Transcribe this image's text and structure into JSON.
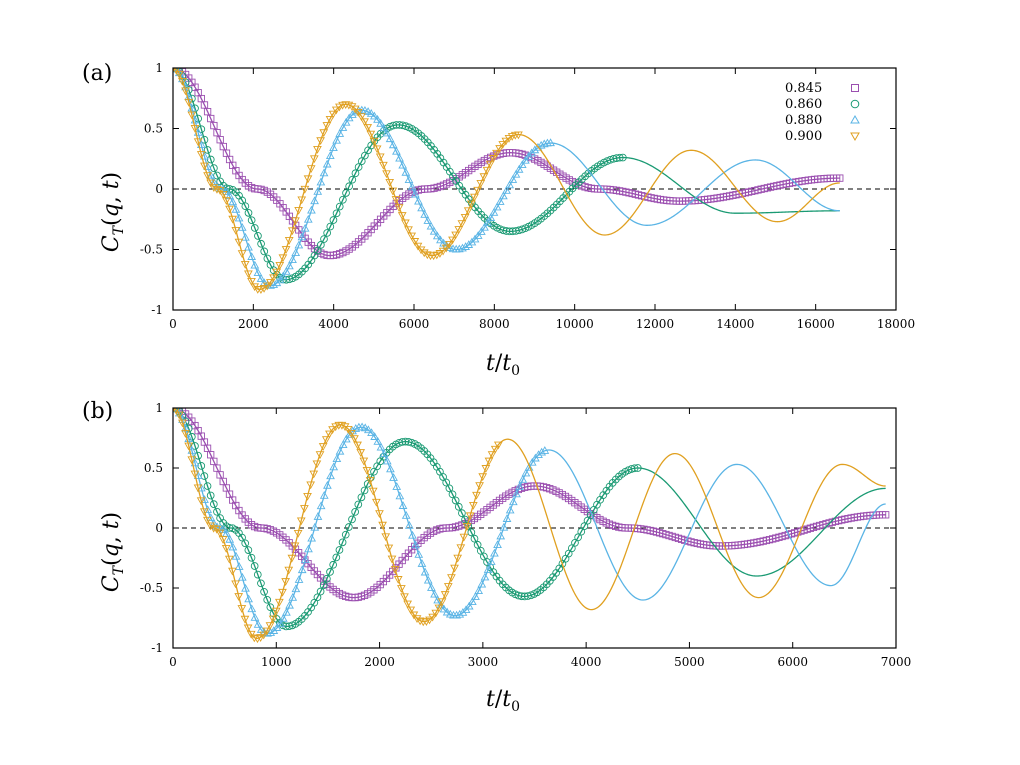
{
  "chart_data": [
    {
      "type": "line",
      "panel_label": "(a)",
      "xlabel": "t/t0",
      "ylabel": "C_T(q,t)",
      "xlim": [
        0,
        18000
      ],
      "ylim": [
        -1,
        1
      ],
      "xticks": [
        0,
        2000,
        4000,
        6000,
        8000,
        10000,
        12000,
        14000,
        16000,
        18000
      ],
      "yticks": [
        -1,
        -0.5,
        0,
        0.5,
        1
      ],
      "xtick_labels": [
        "0",
        "2000",
        "4000",
        "6000",
        "8000",
        "10000",
        "12000",
        "14000",
        "16000",
        "18000"
      ],
      "ytick_labels": [
        "-1",
        "-0.5",
        "0",
        "0.5",
        "1"
      ],
      "reference_line": {
        "y": 0,
        "style": "dashed"
      },
      "legend_position": "top-right",
      "series": [
        {
          "name": "0.845",
          "color": "#9b4fb0",
          "marker": "square",
          "marker_until": 16600,
          "x_end": 16600,
          "period": 8400,
          "decay_time": 8500,
          "amplitude": 1.0,
          "sigma": 1500,
          "curve": [
            [
              0,
              1.0
            ],
            [
              2100,
              0.0
            ],
            [
              3900,
              -0.55
            ],
            [
              6300,
              0.0
            ],
            [
              8400,
              0.3
            ],
            [
              10600,
              0.0
            ],
            [
              12600,
              -0.1
            ],
            [
              16600,
              0.09
            ]
          ]
        },
        {
          "name": "0.860",
          "color": "#1a9a73",
          "marker": "circle",
          "marker_until": 11200,
          "x_end": 16600,
          "period": 5600,
          "decay_time": 9000,
          "amplitude": 1.0,
          "sigma": 1000,
          "curve": [
            [
              0,
              1.0
            ],
            [
              1400,
              0.0
            ],
            [
              2800,
              -0.75
            ],
            [
              5600,
              0.53
            ],
            [
              8400,
              -0.35
            ],
            [
              11200,
              0.26
            ],
            [
              14000,
              -0.2
            ],
            [
              16600,
              -0.18
            ]
          ]
        },
        {
          "name": "0.880",
          "color": "#5ab4e5",
          "marker": "triangle-up",
          "marker_until": 9400,
          "x_end": 16600,
          "period": 4700,
          "decay_time": 9500,
          "amplitude": 1.0,
          "sigma": 850,
          "curve": [
            [
              0,
              1.0
            ],
            [
              1200,
              0.0
            ],
            [
              2400,
              -0.8
            ],
            [
              4700,
              0.65
            ],
            [
              7050,
              -0.5
            ],
            [
              9400,
              0.38
            ],
            [
              11800,
              -0.3
            ],
            [
              14500,
              0.24
            ],
            [
              16600,
              -0.18
            ]
          ]
        },
        {
          "name": "0.900",
          "color": "#e0a020",
          "marker": "triangle-down",
          "marker_until": 8600,
          "x_end": 16600,
          "period": 4300,
          "decay_time": 10500,
          "amplitude": 1.0,
          "sigma": 750,
          "curve": [
            [
              0,
              1.0
            ],
            [
              1100,
              0.0
            ],
            [
              2150,
              -0.83
            ],
            [
              4300,
              0.7
            ],
            [
              6450,
              -0.55
            ],
            [
              8600,
              0.45
            ],
            [
              10750,
              -0.38
            ],
            [
              12900,
              0.32
            ],
            [
              15050,
              -0.27
            ],
            [
              16600,
              0.05
            ]
          ]
        }
      ]
    },
    {
      "type": "line",
      "panel_label": "(b)",
      "xlabel": "t/t0",
      "ylabel": "C_T(q,t)",
      "xlim": [
        0,
        7000
      ],
      "ylim": [
        -1,
        1
      ],
      "xticks": [
        0,
        1000,
        2000,
        3000,
        4000,
        5000,
        6000,
        7000
      ],
      "yticks": [
        -1,
        -0.5,
        0,
        0.5,
        1
      ],
      "xtick_labels": [
        "0",
        "1000",
        "2000",
        "3000",
        "4000",
        "5000",
        "6000",
        "7000"
      ],
      "ytick_labels": [
        "-1",
        "-0.5",
        "0",
        "0.5",
        "1"
      ],
      "reference_line": {
        "y": 0,
        "style": "dashed"
      },
      "series": [
        {
          "name": "0.845",
          "color": "#9b4fb0",
          "marker": "square",
          "marker_until": 6900,
          "x_end": 6900,
          "period": 3500,
          "decay_time": 4500,
          "amplitude": 1.0,
          "sigma": 620,
          "curve": [
            [
              0,
              1.0
            ],
            [
              850,
              0.0
            ],
            [
              1750,
              -0.58
            ],
            [
              2650,
              0.0
            ],
            [
              3500,
              0.35
            ],
            [
              4400,
              0.0
            ],
            [
              5300,
              -0.15
            ],
            [
              6900,
              0.11
            ]
          ]
        },
        {
          "name": "0.860",
          "color": "#1a9a73",
          "marker": "circle",
          "marker_until": 4500,
          "x_end": 6900,
          "period": 2250,
          "decay_time": 6500,
          "amplitude": 1.0,
          "sigma": 430,
          "curve": [
            [
              0,
              1.0
            ],
            [
              560,
              0.0
            ],
            [
              1100,
              -0.82
            ],
            [
              2250,
              0.72
            ],
            [
              3400,
              -0.57
            ],
            [
              4500,
              0.5
            ],
            [
              5650,
              -0.4
            ],
            [
              6900,
              0.33
            ]
          ]
        },
        {
          "name": "0.880",
          "color": "#5ab4e5",
          "marker": "triangle-up",
          "marker_until": 3600,
          "x_end": 6900,
          "period": 1820,
          "decay_time": 10000,
          "amplitude": 1.0,
          "sigma": 350,
          "curve": [
            [
              0,
              1.0
            ],
            [
              450,
              0.0
            ],
            [
              910,
              -0.88
            ],
            [
              1820,
              0.84
            ],
            [
              2730,
              -0.73
            ],
            [
              3640,
              0.65
            ],
            [
              4550,
              -0.6
            ],
            [
              5460,
              0.53
            ],
            [
              6370,
              -0.48
            ],
            [
              6900,
              0.2
            ]
          ]
        },
        {
          "name": "0.900",
          "color": "#e0a020",
          "marker": "triangle-down",
          "marker_until": 3150,
          "x_end": 6900,
          "period": 1620,
          "decay_time": 10500,
          "amplitude": 1.0,
          "sigma": 310,
          "curve": [
            [
              0,
              1.0
            ],
            [
              400,
              0.0
            ],
            [
              810,
              -0.92
            ],
            [
              1620,
              0.86
            ],
            [
              2430,
              -0.78
            ],
            [
              3240,
              0.74
            ],
            [
              4050,
              -0.68
            ],
            [
              4860,
              0.62
            ],
            [
              5670,
              -0.58
            ],
            [
              6480,
              0.53
            ],
            [
              6900,
              0.35
            ]
          ]
        }
      ]
    }
  ]
}
